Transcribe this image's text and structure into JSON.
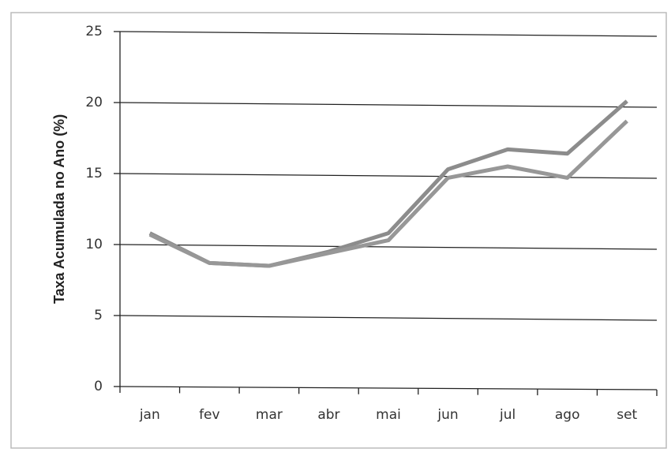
{
  "chart_data": {
    "type": "line",
    "y_label": "Taxa Acumulada no Ano (%)",
    "categories": [
      "jan",
      "fev",
      "mar",
      "abr",
      "mai",
      "jun",
      "jul",
      "ago",
      "set"
    ],
    "series": [
      {
        "color": "#8c8c8c",
        "values": [
          10.8,
          8.7,
          8.5,
          9.5,
          10.8,
          15.3,
          16.7,
          16.4,
          20.1
        ]
      },
      {
        "color": "#979797",
        "values": [
          10.7,
          8.7,
          8.5,
          9.4,
          10.3,
          14.7,
          15.5,
          14.7,
          18.7
        ]
      }
    ],
    "ylim": [
      0,
      25
    ],
    "yticks": [
      0,
      5,
      10,
      15,
      20,
      25
    ],
    "grid": true
  }
}
